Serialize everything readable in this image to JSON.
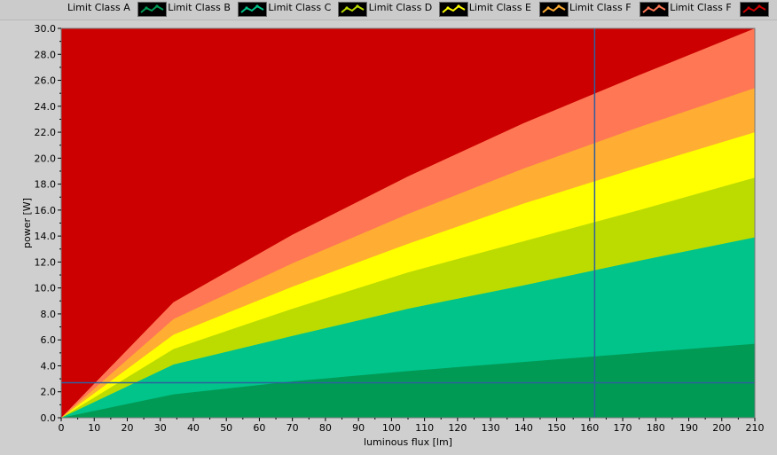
{
  "legend": [
    {
      "label": "Limit Class A",
      "color": "#009a55"
    },
    {
      "label": "Limit Class B",
      "color": "#00c48a"
    },
    {
      "label": "Limit Class C",
      "color": "#bcdc00"
    },
    {
      "label": "Limit Class D",
      "color": "#ffff00"
    },
    {
      "label": "Limit Class E",
      "color": "#ffad33"
    },
    {
      "label": "Limit Class F",
      "color": "#ff7755"
    },
    {
      "label": "Limit Class F",
      "color": "#cc0000"
    }
  ],
  "chart_data": {
    "type": "area",
    "xlabel": "luminous flux [lm]",
    "ylabel": "power [W]",
    "xlim": [
      0,
      210
    ],
    "ylim": [
      0,
      30
    ],
    "x_ticks": [
      "0",
      "10",
      "20",
      "30",
      "40",
      "50",
      "60",
      "70",
      "80",
      "90",
      "100",
      "110",
      "120",
      "130",
      "140",
      "150",
      "160",
      "170",
      "180",
      "190",
      "200",
      "210"
    ],
    "y_ticks": [
      "0.0",
      "2.0",
      "4.0",
      "6.0",
      "8.0",
      "10.0",
      "12.0",
      "14.0",
      "16.0",
      "18.0",
      "20.0",
      "22.0",
      "24.0",
      "26.0",
      "28.0",
      "30.0"
    ],
    "x": [
      0,
      34,
      70,
      105,
      140,
      175,
      210
    ],
    "series": [
      {
        "name": "Limit Class A",
        "color": "#009a55",
        "values": [
          0,
          1.8,
          2.8,
          3.6,
          4.3,
          5.0,
          5.7
        ]
      },
      {
        "name": "Limit Class B",
        "color": "#00c48a",
        "values": [
          0,
          4.1,
          6.3,
          8.4,
          10.2,
          12.1,
          13.9
        ]
      },
      {
        "name": "Limit Class C",
        "color": "#bcdc00",
        "values": [
          0,
          5.3,
          8.4,
          11.2,
          13.6,
          16.0,
          18.5
        ]
      },
      {
        "name": "Limit Class D",
        "color": "#ffff00",
        "values": [
          0,
          6.4,
          10.1,
          13.4,
          16.5,
          19.3,
          22.0
        ]
      },
      {
        "name": "Limit Class E",
        "color": "#ffad33",
        "values": [
          0,
          7.6,
          11.9,
          15.7,
          19.2,
          22.4,
          25.4
        ]
      },
      {
        "name": "Limit Class F",
        "color": "#ff7755",
        "values": [
          0,
          8.9,
          14.1,
          18.6,
          22.7,
          26.4,
          30.0
        ]
      },
      {
        "name": "Limit Class F",
        "color": "#cc0000",
        "values": [
          30,
          30,
          30,
          30,
          30,
          30,
          30
        ]
      }
    ],
    "cursor": {
      "x": 161.5,
      "y": 2.7,
      "color": "#2f5f9f"
    }
  }
}
